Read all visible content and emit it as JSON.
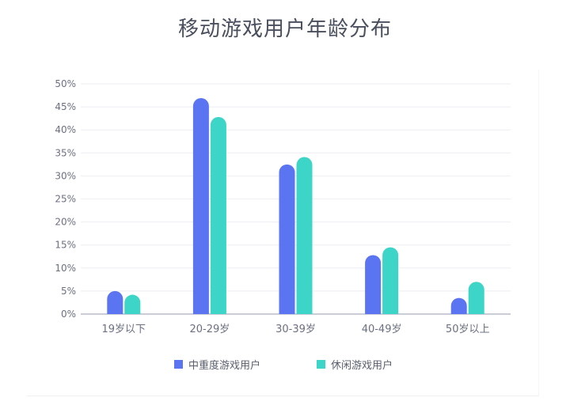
{
  "chart_data": {
    "type": "bar",
    "title": "移动游戏用户年龄分布",
    "categories": [
      "19岁以下",
      "20-29岁",
      "30-39岁",
      "40-49岁",
      "50岁以上"
    ],
    "series": [
      {
        "name": "中重度游戏用户",
        "color": "#5b75f2",
        "values": [
          5.0,
          46.9,
          32.5,
          12.8,
          3.5
        ]
      },
      {
        "name": "休闲游戏用户",
        "color": "#3dd5c8",
        "values": [
          4.2,
          42.8,
          34.1,
          14.5,
          7.0
        ]
      }
    ],
    "ylim": [
      0,
      50
    ],
    "yticks": [
      "0%",
      "5%",
      "10%",
      "15%",
      "20%",
      "25%",
      "30%",
      "35%",
      "40%",
      "45%",
      "50%"
    ],
    "ytick_values": [
      0,
      5,
      10,
      15,
      20,
      25,
      30,
      35,
      40,
      45,
      50
    ],
    "grid": true,
    "legend_position": "bottom"
  }
}
